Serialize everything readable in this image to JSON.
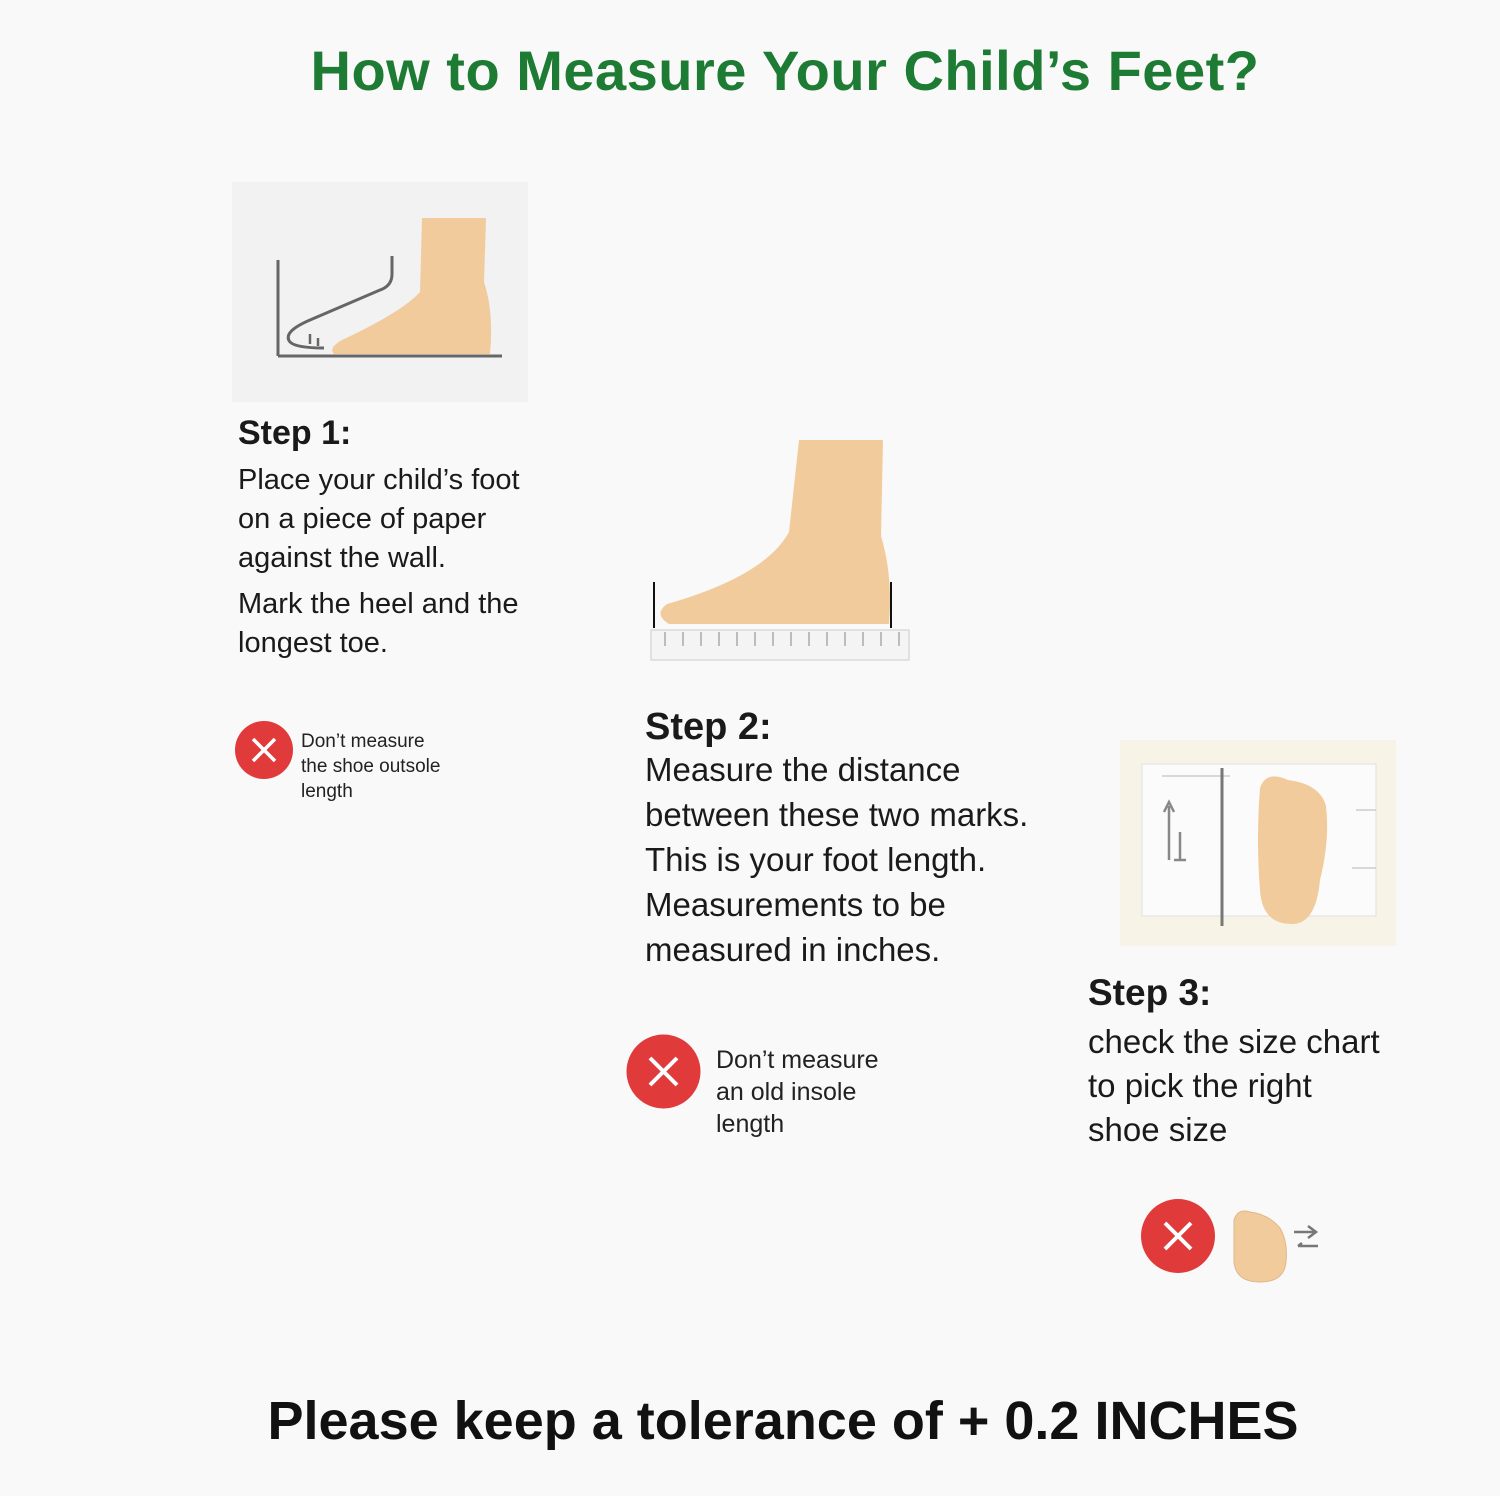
{
  "title": "How to Measure Your Child’s Feet?",
  "colors": {
    "title": "#1e7b34",
    "warning": "#e03a3a",
    "skin": "#f2cb9c",
    "line": "#666666"
  },
  "steps": [
    {
      "title": "Step 1:",
      "lines": [
        "Place your child’s foot",
        "on a piece of paper",
        "against the wall.",
        "Mark the heel and the",
        "longest toe."
      ],
      "warning": {
        "icon": "x-circle-icon",
        "lines": [
          "Don’t measure",
          "the shoe outsole",
          "length"
        ]
      }
    },
    {
      "title": "Step 2:",
      "lines": [
        "Measure the distance",
        "between these two marks.",
        "This is your foot length.",
        "Measurements to be",
        "measured in inches."
      ],
      "warning": {
        "icon": "x-circle-icon",
        "lines": [
          "Don’t measure",
          "an old insole",
          "length"
        ]
      }
    },
    {
      "title": "Step 3:",
      "lines": [
        "check the size chart",
        "to pick the right",
        "shoe size"
      ],
      "warning": {
        "icon": "x-circle-icon"
      }
    }
  ],
  "footer": "Please keep a tolerance of + 0.2 INCHES"
}
